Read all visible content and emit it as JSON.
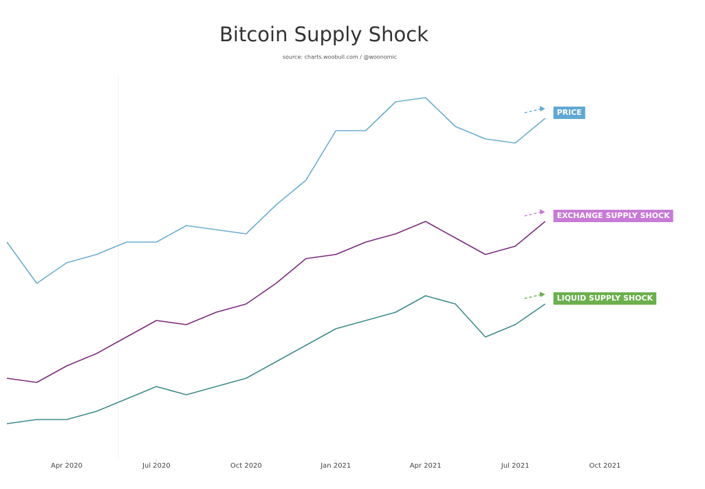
{
  "chart_data": {
    "type": "line",
    "title": "Bitcoin Supply Shock",
    "subtitle": "source: charts.woobull.com / @woonomic",
    "x": [
      "2020-02",
      "2020-03",
      "2020-04",
      "2020-05",
      "2020-06",
      "2020-07",
      "2020-08",
      "2020-09",
      "2020-10",
      "2020-11",
      "2020-12",
      "2021-01",
      "2021-02",
      "2021-03",
      "2021-04",
      "2021-05",
      "2021-06",
      "2021-07",
      "2021-08"
    ],
    "xlim": [
      "2020-02",
      "2022-01"
    ],
    "xticks": [
      {
        "value": "2020-04",
        "label": "Apr 2020"
      },
      {
        "value": "2020-07",
        "label": "Jul 2020"
      },
      {
        "value": "2020-10",
        "label": "Oct 2020"
      },
      {
        "value": "2021-01",
        "label": "Jan 2021"
      },
      {
        "value": "2021-04",
        "label": "Apr 2021"
      },
      {
        "value": "2021-07",
        "label": "Jul 2021"
      },
      {
        "value": "2021-10",
        "label": "Oct 2021"
      }
    ],
    "ylim": [
      0,
      100
    ],
    "series": [
      {
        "name": "PRICE",
        "color": "#6aaed0",
        "label_color": "#5fa8d3",
        "values": [
          58,
          48,
          53,
          55,
          58,
          58,
          62,
          61,
          60,
          67,
          73,
          85,
          85,
          92,
          93,
          86,
          83,
          82,
          88
        ]
      },
      {
        "name": "EXCHANGE SUPPLY SHOCK",
        "color": "#7b2a7d",
        "label_color": "#c77ad6",
        "values": [
          25,
          24,
          28,
          31,
          35,
          39,
          38,
          41,
          43,
          48,
          54,
          55,
          58,
          60,
          63,
          59,
          55,
          57,
          63
        ]
      },
      {
        "name": "LIQUID SUPPLY SHOCK",
        "color": "#3d8c8a",
        "label_color": "#6ab04c",
        "values": [
          14,
          15,
          15,
          17,
          20,
          23,
          21,
          23,
          25,
          29,
          33,
          37,
          39,
          41,
          45,
          43,
          35,
          38,
          43
        ]
      }
    ]
  }
}
